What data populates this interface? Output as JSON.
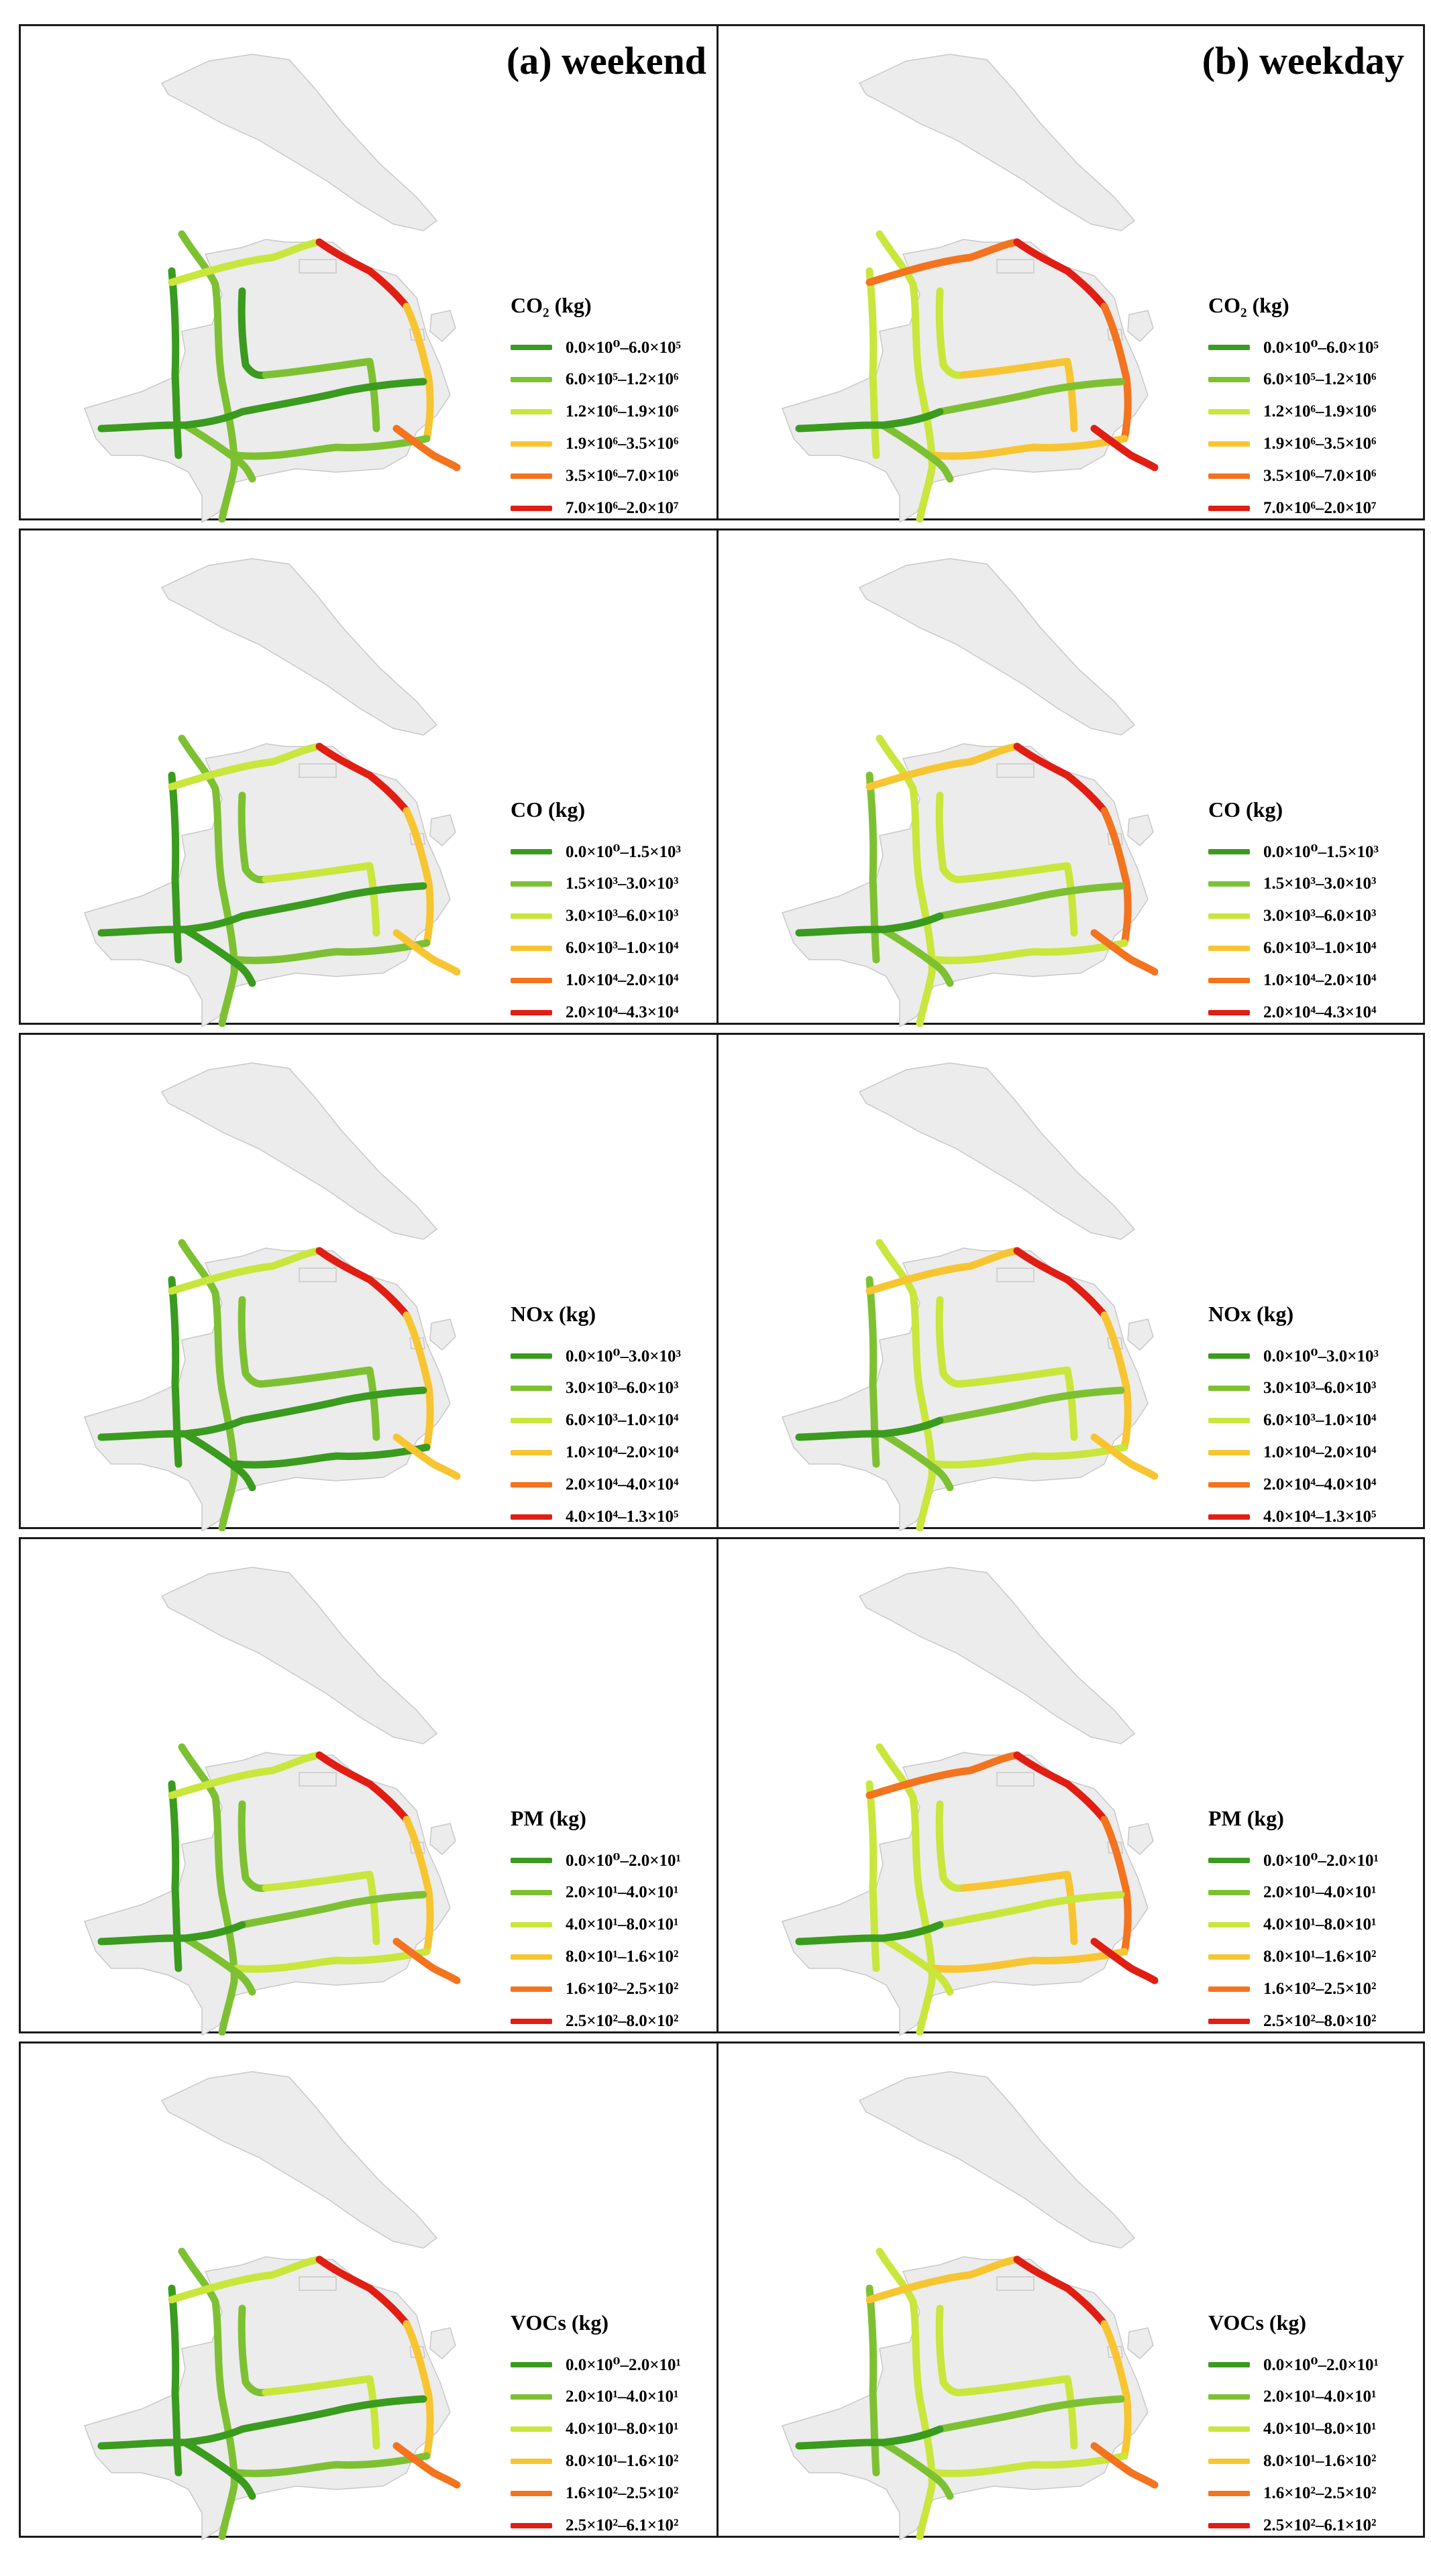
{
  "columns": [
    {
      "title": "(a) weekend"
    },
    {
      "title": "(b) weekday"
    }
  ],
  "colors": {
    "class1": "#3a9b1e",
    "class2": "#7dc133",
    "class3": "#c9e63c",
    "class4": "#f7c531",
    "class5": "#f3731f",
    "class6": "#e01e14",
    "land": "#ececec",
    "land_outline": "#c8c8c8",
    "frame": "#1a1a1a"
  },
  "rows": [
    {
      "legend_title": "CO₂ (kg)",
      "classes": [
        "0.0×10⁰–6.0×10⁵",
        "6.0×10⁵–1.2×10⁶",
        "1.2×10⁶–1.9×10⁶",
        "1.9×10⁶–3.5×10⁶",
        "3.5×10⁶–7.0×10⁶",
        "7.0×10⁶–2.0×10⁷"
      ]
    },
    {
      "legend_title": "CO (kg)",
      "classes": [
        "0.0×10⁰–1.5×10³",
        "1.5×10³–3.0×10³",
        "3.0×10³–6.0×10³",
        "6.0×10³–1.0×10⁴",
        "1.0×10⁴–2.0×10⁴",
        "2.0×10⁴–4.3×10⁴"
      ]
    },
    {
      "legend_title": "NOx (kg)",
      "classes": [
        "0.0×10⁰–3.0×10³",
        "3.0×10³–6.0×10³",
        "6.0×10³–1.0×10⁴",
        "1.0×10⁴–2.0×10⁴",
        "2.0×10⁴–4.0×10⁴",
        "4.0×10⁴–1.3×10⁵"
      ]
    },
    {
      "legend_title": "PM (kg)",
      "classes": [
        "0.0×10⁰–2.0×10¹",
        "2.0×10¹–4.0×10¹",
        "4.0×10¹–8.0×10¹",
        "8.0×10¹–1.6×10²",
        "1.6×10²–2.5×10²",
        "2.5×10²–8.0×10²"
      ]
    },
    {
      "legend_title": "VOCs (kg)",
      "classes": [
        "0.0×10⁰–2.0×10¹",
        "2.0×10¹–4.0×10¹",
        "4.0×10¹–8.0×10¹",
        "8.0×10¹–1.6×10²",
        "1.6×10²–2.5×10²",
        "2.5×10²–6.1×10²"
      ]
    }
  ],
  "road_classes": {
    "weekend": {
      "CO₂ (kg)": {
        "west-outer": 1,
        "west-middle": 2,
        "north-arc": 3,
        "north-east-arc": 6,
        "east-road": 4,
        "inner-west": 1,
        "inner-mid-cross": 2,
        "mid-cross": 1,
        "south-cross": 2,
        "south-east": 5,
        "southwest": 2,
        "west-cross": 1
      },
      "CO (kg)": {
        "west-outer": 1,
        "west-middle": 2,
        "north-arc": 3,
        "north-east-arc": 6,
        "east-road": 4,
        "inner-west": 2,
        "inner-mid-cross": 3,
        "mid-cross": 1,
        "south-cross": 2,
        "south-east": 4,
        "southwest": 1,
        "west-cross": 1
      },
      "NOx (kg)": {
        "west-outer": 1,
        "west-middle": 2,
        "north-arc": 3,
        "north-east-arc": 6,
        "east-road": 4,
        "inner-west": 2,
        "inner-mid-cross": 2,
        "mid-cross": 1,
        "south-cross": 1,
        "south-east": 4,
        "southwest": 1,
        "west-cross": 1
      },
      "PM (kg)": {
        "west-outer": 1,
        "west-middle": 2,
        "north-arc": 3,
        "north-east-arc": 6,
        "east-road": 4,
        "inner-west": 2,
        "inner-mid-cross": 3,
        "mid-cross": 2,
        "south-cross": 3,
        "south-east": 5,
        "southwest": 2,
        "west-cross": 1
      },
      "VOCs (kg)": {
        "west-outer": 1,
        "west-middle": 2,
        "north-arc": 3,
        "north-east-arc": 6,
        "east-road": 4,
        "inner-west": 2,
        "inner-mid-cross": 3,
        "mid-cross": 1,
        "south-cross": 2,
        "south-east": 5,
        "southwest": 1,
        "west-cross": 1
      }
    },
    "weekday": {
      "CO₂ (kg)": {
        "west-outer": 3,
        "west-middle": 3,
        "north-arc": 5,
        "north-east-arc": 6,
        "east-road": 5,
        "inner-west": 3,
        "inner-mid-cross": 4,
        "mid-cross": 2,
        "south-cross": 4,
        "south-east": 6,
        "southwest": 2,
        "west-cross": 1
      },
      "CO (kg)": {
        "west-outer": 2,
        "west-middle": 3,
        "north-arc": 4,
        "north-east-arc": 6,
        "east-road": 5,
        "inner-west": 3,
        "inner-mid-cross": 3,
        "mid-cross": 2,
        "south-cross": 3,
        "south-east": 5,
        "southwest": 2,
        "west-cross": 1
      },
      "NOx (kg)": {
        "west-outer": 2,
        "west-middle": 3,
        "north-arc": 4,
        "north-east-arc": 6,
        "east-road": 4,
        "inner-west": 3,
        "inner-mid-cross": 3,
        "mid-cross": 2,
        "south-cross": 3,
        "south-east": 4,
        "southwest": 2,
        "west-cross": 1
      },
      "PM (kg)": {
        "west-outer": 3,
        "west-middle": 3,
        "north-arc": 5,
        "north-east-arc": 6,
        "east-road": 5,
        "inner-west": 3,
        "inner-mid-cross": 4,
        "mid-cross": 3,
        "south-cross": 4,
        "south-east": 6,
        "southwest": 3,
        "west-cross": 1
      },
      "VOCs (kg)": {
        "west-outer": 2,
        "west-middle": 3,
        "north-arc": 4,
        "north-east-arc": 6,
        "east-road": 4,
        "inner-west": 3,
        "inner-mid-cross": 3,
        "mid-cross": 2,
        "south-cross": 3,
        "south-east": 5,
        "southwest": 2,
        "west-cross": 1
      }
    }
  }
}
